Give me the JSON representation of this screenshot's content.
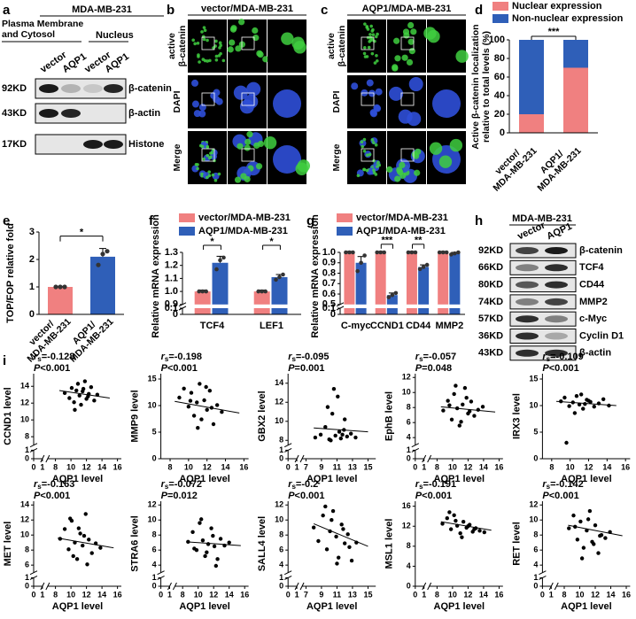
{
  "panels": {
    "a": {
      "label": "a",
      "cell_line": "MDA-MB-231",
      "fractions": [
        "Plasma Membrane\nand Cytosol",
        "Nucleus"
      ],
      "lanes": [
        "vector",
        "AQP1",
        "vector",
        "AQP1"
      ],
      "rows": [
        {
          "size": "92KD",
          "protein": "β-catenin"
        },
        {
          "size": "43KD",
          "protein": "β-actin"
        },
        {
          "size": "17KD",
          "protein": "Histone"
        }
      ]
    },
    "b": {
      "label": "b",
      "title": "vector/MDA-MB-231",
      "rows": [
        "active\nβ-catenin",
        "DAPI",
        "Merge"
      ]
    },
    "c": {
      "label": "c",
      "title": "AQP1/MDA-MB-231",
      "rows": [
        "active\nβ-catenin",
        "DAPI",
        "Merge"
      ]
    },
    "h": {
      "label": "h",
      "cell_line": "MDA-MB-231",
      "lanes": [
        "vector",
        "AQP1"
      ],
      "rows": [
        {
          "size": "92KD",
          "protein": "β-catenin"
        },
        {
          "size": "66KD",
          "protein": "TCF4"
        },
        {
          "size": "80KD",
          "protein": "CD44"
        },
        {
          "size": "74KD",
          "protein": "MMP2"
        },
        {
          "size": "57KD",
          "protein": "c-Myc"
        },
        {
          "size": "36KD",
          "protein": "Cyclin D1"
        },
        {
          "size": "43KD",
          "protein": "β-actin"
        }
      ]
    },
    "i": {
      "label": "i"
    }
  },
  "chart_data": [
    {
      "label": "d",
      "type": "stacked_bar",
      "categories": [
        "vector/\nMDA-MB-231",
        "AQP1/\nMDA-MB-231"
      ],
      "series": [
        {
          "name": "Nuclear expression",
          "color": "#f08080",
          "values": [
            20,
            70
          ]
        },
        {
          "name": "Non-nuclear expression",
          "color": "#2f5fb8",
          "values": [
            80,
            30
          ]
        }
      ],
      "ylim": [
        0,
        100
      ],
      "yticks": [
        0,
        20,
        40,
        60,
        80,
        100
      ],
      "ylabel": "Active β-catenin localization\nrelative to total levels (%)",
      "annotation": "***"
    },
    {
      "label": "e",
      "type": "bar_points",
      "categories": [
        "vector/\nMDA-MB-231",
        "AQP1/\nMDA-MB-231"
      ],
      "colors": [
        "#f08080",
        "#2f5fb8"
      ],
      "values": [
        1,
        2.1
      ],
      "errors": [
        0.02,
        0.3
      ],
      "points": [
        [
          1,
          1,
          1
        ],
        [
          1.8,
          2.2,
          2.3
        ]
      ],
      "ylim": [
        0,
        3
      ],
      "yticks": [
        0,
        1,
        2,
        3
      ],
      "ylabel": "TOP/FOP relative fold",
      "annotation": "*"
    },
    {
      "label": "f",
      "type": "grouped_bar",
      "categories": [
        "TCF4",
        "LEF1"
      ],
      "series": [
        {
          "name": "vector/MDA-MB-231",
          "color": "#f08080",
          "values": [
            1,
            1
          ],
          "errors": [
            0.01,
            0.01
          ],
          "points": [
            [
              1,
              1,
              1
            ],
            [
              1,
              1,
              1
            ]
          ]
        },
        {
          "name": "AQP1/MDA-MB-231",
          "color": "#2f5fb8",
          "values": [
            1.22,
            1.11
          ],
          "errors": [
            0.05,
            0.02
          ],
          "points": [
            [
              1.17,
              1.24,
              1.26
            ],
            [
              1.09,
              1.11,
              1.13
            ]
          ]
        }
      ],
      "ylim": [
        0,
        1.3
      ],
      "ybreak": [
        0.1,
        0.9
      ],
      "yticks": [
        0,
        0.1,
        0.9,
        {
          "value": 1,
          "label": "1.0"
        },
        1.1,
        1.2,
        1.3
      ],
      "ylabel": "Relative mRNA expression",
      "annotations": [
        {
          "category": "TCF4",
          "text": "*"
        },
        {
          "category": "LEF1",
          "text": "*"
        }
      ]
    },
    {
      "label": "g",
      "type": "grouped_bar",
      "categories": [
        "C-myc",
        "CCND1",
        "CD44",
        "MMP2"
      ],
      "series": [
        {
          "name": "vector/MDA-MB-231",
          "color": "#f08080",
          "values": [
            1,
            1,
            1,
            1
          ],
          "errors": [
            0.01,
            0.01,
            0.01,
            0.01
          ],
          "points": [
            [
              1,
              1,
              1
            ],
            [
              1,
              1,
              1
            ],
            [
              1,
              1,
              1
            ],
            [
              1,
              1,
              1
            ]
          ]
        },
        {
          "name": "AQP1/MDA-MB-231",
          "color": "#2f5fb8",
          "values": [
            0.9,
            0.59,
            0.86,
            0.99
          ],
          "errors": [
            0.06,
            0.02,
            0.02,
            0.01
          ],
          "points": [
            [
              0.82,
              0.9,
              0.97
            ],
            [
              0.57,
              0.59,
              0.61
            ],
            [
              0.84,
              0.86,
              0.88
            ],
            [
              0.98,
              0.99,
              1
            ]
          ]
        }
      ],
      "ylim": [
        0,
        1
      ],
      "ybreak": [
        0.1,
        0.5
      ],
      "yticks": [
        0,
        0.1,
        0.5,
        0.6,
        0.7,
        0.8,
        0.9,
        {
          "value": 1,
          "label": "1.0"
        }
      ],
      "ylabel": "Relative mRNA expression",
      "annotations": [
        {
          "category": "CCND1",
          "text": "***"
        },
        {
          "category": "CD44",
          "text": "**"
        }
      ]
    },
    {
      "type": "scatter",
      "ylabel": "CCND1 level",
      "xlabel": "AQP1 level",
      "stat": {
        "symbol": "r",
        "subscript": "s",
        "text": "=-0.128"
      },
      "p": {
        "symbol": "P",
        "text": "<0.001"
      },
      "xlim": [
        0,
        16.5
      ],
      "xbreak": [
        1,
        7
      ],
      "xticks": [
        0,
        1,
        8,
        10,
        12,
        14,
        16
      ],
      "ylim": [
        0,
        15.5
      ],
      "ybreak": [
        1,
        7
      ],
      "yticks": [
        0,
        1,
        8,
        10,
        12,
        14
      ],
      "x": [
        9.2,
        9.8,
        10.1,
        10.4,
        10.7,
        10.9,
        11.1,
        11.3,
        11.5,
        11.8,
        12.0,
        12.3,
        12.6,
        13.0,
        13.4,
        10.5,
        11.6,
        12.2
      ],
      "y": [
        13.2,
        12.6,
        13.8,
        12.1,
        13.5,
        14.3,
        12.9,
        11.8,
        13.4,
        14.6,
        12.5,
        13.1,
        13.9,
        12.3,
        13.0,
        11.2,
        13.7,
        12.8
      ],
      "fit": {
        "x": [
          8.5,
          15
        ],
        "y": [
          13.5,
          12.6
        ]
      }
    },
    {
      "type": "scatter",
      "ylabel": "MMP9 level",
      "xlabel": "AQP1 level",
      "stat": {
        "symbol": "r",
        "subscript": "s",
        "text": "=-0.198"
      },
      "p": {
        "symbol": "P",
        "text": "<0.001"
      },
      "xlim": [
        7,
        16.5
      ],
      "xticks": [
        8,
        10,
        12,
        14,
        16
      ],
      "ylim": [
        0,
        16
      ],
      "yticks": [
        0,
        5,
        10,
        15
      ],
      "x": [
        9.0,
        9.5,
        10.0,
        10.3,
        10.6,
        10.9,
        11.2,
        11.4,
        11.7,
        12.0,
        12.3,
        12.7,
        13.1,
        13.6,
        10.2,
        11.0,
        11.9,
        12.5
      ],
      "y": [
        11.5,
        13.2,
        9.8,
        12.4,
        8.1,
        10.6,
        14.1,
        7.4,
        11.0,
        9.2,
        12.8,
        6.5,
        10.1,
        8.8,
        10.9,
        5.8,
        13.5,
        9.6
      ],
      "fit": {
        "x": [
          8.5,
          15.5
        ],
        "y": [
          10.8,
          8.6
        ]
      }
    },
    {
      "type": "scatter",
      "ylabel": "GBX2 level",
      "xlabel": "AQP1 level",
      "stat": {
        "symbol": "r",
        "subscript": "s",
        "text": "=-0.095"
      },
      "p": {
        "symbol": "P",
        "text": "=0.001"
      },
      "xlim": [
        0,
        16
      ],
      "xbreak": [
        1,
        6.5
      ],
      "xticks": [
        0,
        1,
        7,
        9,
        11,
        13,
        15
      ],
      "ylim": [
        0,
        15
      ],
      "ybreak": [
        1,
        7.5
      ],
      "yticks": [
        0,
        1,
        8,
        10,
        12,
        14
      ],
      "x": [
        8.2,
        8.9,
        9.5,
        10.0,
        10.4,
        10.8,
        11.1,
        11.5,
        11.9,
        12.3,
        12.8,
        13.4,
        9.8,
        10.6,
        11.3,
        12.0,
        10.2,
        11.7
      ],
      "y": [
        8.3,
        8.6,
        9.4,
        8.1,
        10.8,
        8.5,
        12.6,
        8.2,
        9.1,
        8.4,
        8.7,
        8.3,
        11.5,
        13.4,
        8.9,
        10.2,
        8.0,
        8.6
      ],
      "fit": {
        "x": [
          8,
          15
        ],
        "y": [
          9.3,
          8.9
        ]
      }
    },
    {
      "type": "scatter",
      "ylabel": "EphB level",
      "xlabel": "AQP1 level",
      "stat": {
        "symbol": "r",
        "subscript": "s",
        "text": "=-0.057"
      },
      "p": {
        "symbol": "P",
        "text": "=0.048"
      },
      "xlim": [
        0,
        16.5
      ],
      "xbreak": [
        1,
        7
      ],
      "xticks": [
        0,
        1,
        8,
        10,
        12,
        14,
        16
      ],
      "ylim": [
        0,
        12.5
      ],
      "ybreak": [
        1,
        3
      ],
      "yticks": [
        0,
        1,
        4,
        6,
        8,
        10,
        12
      ],
      "x": [
        8.8,
        9.4,
        9.9,
        10.2,
        10.6,
        10.9,
        11.3,
        11.6,
        12.0,
        12.4,
        12.8,
        13.3,
        13.9,
        10.4,
        11.1,
        11.8,
        12.2,
        9.6
      ],
      "y": [
        7.6,
        8.9,
        6.4,
        9.8,
        7.9,
        5.6,
        8.4,
        10.6,
        7.2,
        8.8,
        6.9,
        7.7,
        8.1,
        10.9,
        6.1,
        9.3,
        7.5,
        8.3
      ],
      "fit": {
        "x": [
          8.5,
          15.5
        ],
        "y": [
          8.1,
          7.4
        ]
      }
    },
    {
      "type": "scatter",
      "ylabel": "IRX3 level",
      "xlabel": "AQP1 level",
      "stat": {
        "symbol": "r",
        "subscript": "s",
        "text": "=-0.109"
      },
      "p": {
        "symbol": "P",
        "text": "<0.001"
      },
      "xlim": [
        7,
        16.5
      ],
      "xticks": [
        8,
        10,
        12,
        14,
        16
      ],
      "ylim": [
        0,
        16
      ],
      "yticks": [
        0,
        5,
        10,
        15
      ],
      "x": [
        9.0,
        9.4,
        9.9,
        10.3,
        10.7,
        11.0,
        11.4,
        11.8,
        12.2,
        12.6,
        13.1,
        13.6,
        14.2,
        10.5,
        11.2,
        12.0,
        9.6,
        11.6
      ],
      "y": [
        10.8,
        11.5,
        9.9,
        10.6,
        11.8,
        10.2,
        9.4,
        11.1,
        10.7,
        9.8,
        10.4,
        11.2,
        10.0,
        8.6,
        12.1,
        10.9,
        3.0,
        10.3
      ],
      "fit": {
        "x": [
          8.5,
          15
        ],
        "y": [
          10.8,
          10.0
        ]
      }
    },
    {
      "type": "scatter",
      "ylabel": "MET level",
      "xlabel": "AQP1 level",
      "stat": {
        "symbol": "r",
        "subscript": "s",
        "text": "=-0.163"
      },
      "p": {
        "symbol": "P",
        "text": "<0.001"
      },
      "xlim": [
        0,
        16.5
      ],
      "xbreak": [
        1,
        7
      ],
      "xticks": [
        0,
        1,
        8,
        10,
        12,
        14,
        16
      ],
      "ylim": [
        0,
        14.5
      ],
      "ybreak": [
        1,
        5
      ],
      "yticks": [
        0,
        1,
        6,
        8,
        10,
        12,
        14
      ],
      "x": [
        8.6,
        9.2,
        9.7,
        10.1,
        10.5,
        10.8,
        11.2,
        11.5,
        11.9,
        12.3,
        12.7,
        13.2,
        13.8,
        10.3,
        11.0,
        11.7,
        12.1,
        9.9
      ],
      "y": [
        9.5,
        10.8,
        8.1,
        11.9,
        9.0,
        6.8,
        10.2,
        8.6,
        12.8,
        9.4,
        7.6,
        8.9,
        8.3,
        7.2,
        10.9,
        9.9,
        6.1,
        12.2
      ],
      "fit": {
        "x": [
          8.3,
          15.5
        ],
        "y": [
          9.6,
          8.3
        ]
      }
    },
    {
      "type": "scatter",
      "ylabel": "STRA6 level",
      "xlabel": "AQP1 level",
      "stat": {
        "symbol": "r",
        "subscript": "s",
        "text": "=-0.072"
      },
      "p": {
        "symbol": "P",
        "text": "=0.012"
      },
      "xlim": [
        0,
        16.5
      ],
      "xbreak": [
        1,
        7
      ],
      "xticks": [
        0,
        1,
        8,
        10,
        12,
        14,
        16
      ],
      "ylim": [
        0,
        12.5
      ],
      "ybreak": [
        1,
        3
      ],
      "yticks": [
        0,
        1,
        4,
        6,
        8,
        10,
        12
      ],
      "x": [
        8.7,
        9.3,
        9.8,
        10.2,
        10.6,
        10.9,
        11.3,
        11.7,
        12.1,
        12.5,
        12.9,
        13.4,
        14.0,
        10.4,
        11.1,
        11.9,
        9.5,
        12.3
      ],
      "y": [
        7.1,
        8.4,
        6.0,
        9.6,
        7.3,
        5.2,
        6.8,
        8.9,
        6.5,
        4.8,
        7.5,
        6.6,
        7.0,
        10.1,
        5.7,
        7.9,
        6.2,
        3.9
      ],
      "fit": {
        "x": [
          8.5,
          15.5
        ],
        "y": [
          7.1,
          6.6
        ]
      }
    },
    {
      "type": "scatter",
      "ylabel": "SALL4 level",
      "xlabel": "AQP1 level",
      "stat": {
        "symbol": "r",
        "subscript": "s",
        "text": "=-0.2"
      },
      "p": {
        "symbol": "P",
        "text": "<0.001"
      },
      "xlim": [
        0,
        16
      ],
      "xbreak": [
        1,
        6.5
      ],
      "xticks": [
        0,
        1,
        7,
        9,
        11,
        13,
        15
      ],
      "ylim": [
        0,
        12.5
      ],
      "ybreak": [
        1,
        3
      ],
      "yticks": [
        0,
        1,
        4,
        6,
        8,
        10,
        12
      ],
      "x": [
        8.0,
        8.6,
        9.2,
        9.7,
        10.1,
        10.5,
        10.9,
        11.2,
        11.6,
        12.0,
        12.4,
        12.9,
        13.5,
        10.3,
        11.0,
        11.8,
        9.5,
        12.6
      ],
      "y": [
        9.0,
        7.2,
        10.6,
        6.1,
        8.5,
        11.2,
        7.8,
        5.0,
        9.4,
        6.9,
        8.1,
        4.6,
        7.0,
        10.0,
        4.2,
        8.8,
        11.8,
        6.4
      ],
      "fit": {
        "x": [
          8,
          15
        ],
        "y": [
          9.5,
          6.5
        ]
      }
    },
    {
      "type": "scatter",
      "ylabel": "MSL1 level",
      "xlabel": "AQP1 level",
      "stat": {
        "symbol": "r",
        "subscript": "s",
        "text": "=-0.191"
      },
      "p": {
        "symbol": "P",
        "text": "<0.001"
      },
      "xlim": [
        0,
        16.5
      ],
      "xbreak": [
        1,
        7
      ],
      "xticks": [
        0,
        1,
        8,
        10,
        12,
        14,
        16
      ],
      "ylim": [
        0,
        17
      ],
      "yticks": [
        0,
        4,
        8,
        12,
        16
      ],
      "x": [
        8.7,
        9.3,
        9.8,
        10.2,
        10.6,
        11.0,
        11.4,
        11.8,
        12.2,
        12.6,
        13.0,
        13.5,
        14.1,
        10.4,
        11.2,
        12.0,
        9.6,
        12.8
      ],
      "y": [
        12.5,
        13.6,
        11.4,
        14.2,
        12.1,
        10.6,
        12.9,
        11.7,
        12.3,
        10.9,
        11.6,
        11.1,
        10.8,
        13.1,
        9.8,
        12.0,
        14.8,
        11.4
      ],
      "fit": {
        "x": [
          8.5,
          15
        ],
        "y": [
          12.9,
          11.2
        ]
      }
    },
    {
      "type": "scatter",
      "ylabel": "RET level",
      "xlabel": "AQP1 level",
      "stat": {
        "symbol": "r",
        "subscript": "s",
        "text": "=-0.142"
      },
      "p": {
        "symbol": "P",
        "text": "<0.001"
      },
      "xlim": [
        0,
        16.5
      ],
      "xbreak": [
        1,
        7
      ],
      "xticks": [
        0,
        1,
        8,
        10,
        12,
        14,
        16
      ],
      "ylim": [
        0,
        12.5
      ],
      "ybreak": [
        1,
        3
      ],
      "yticks": [
        0,
        1,
        4,
        6,
        8,
        10,
        12
      ],
      "x": [
        8.6,
        9.2,
        9.7,
        10.1,
        10.5,
        10.9,
        11.3,
        11.6,
        12.0,
        12.4,
        12.8,
        13.3,
        13.9,
        10.3,
        11.1,
        11.8,
        9.4,
        12.6
      ],
      "y": [
        8.9,
        10.6,
        7.4,
        9.8,
        6.3,
        8.6,
        11.2,
        7.1,
        9.3,
        5.6,
        8.0,
        7.6,
        8.4,
        4.9,
        10.1,
        6.8,
        9.1,
        7.9
      ],
      "fit": {
        "x": [
          8.5,
          15.5
        ],
        "y": [
          9.3,
          7.9
        ]
      }
    }
  ]
}
